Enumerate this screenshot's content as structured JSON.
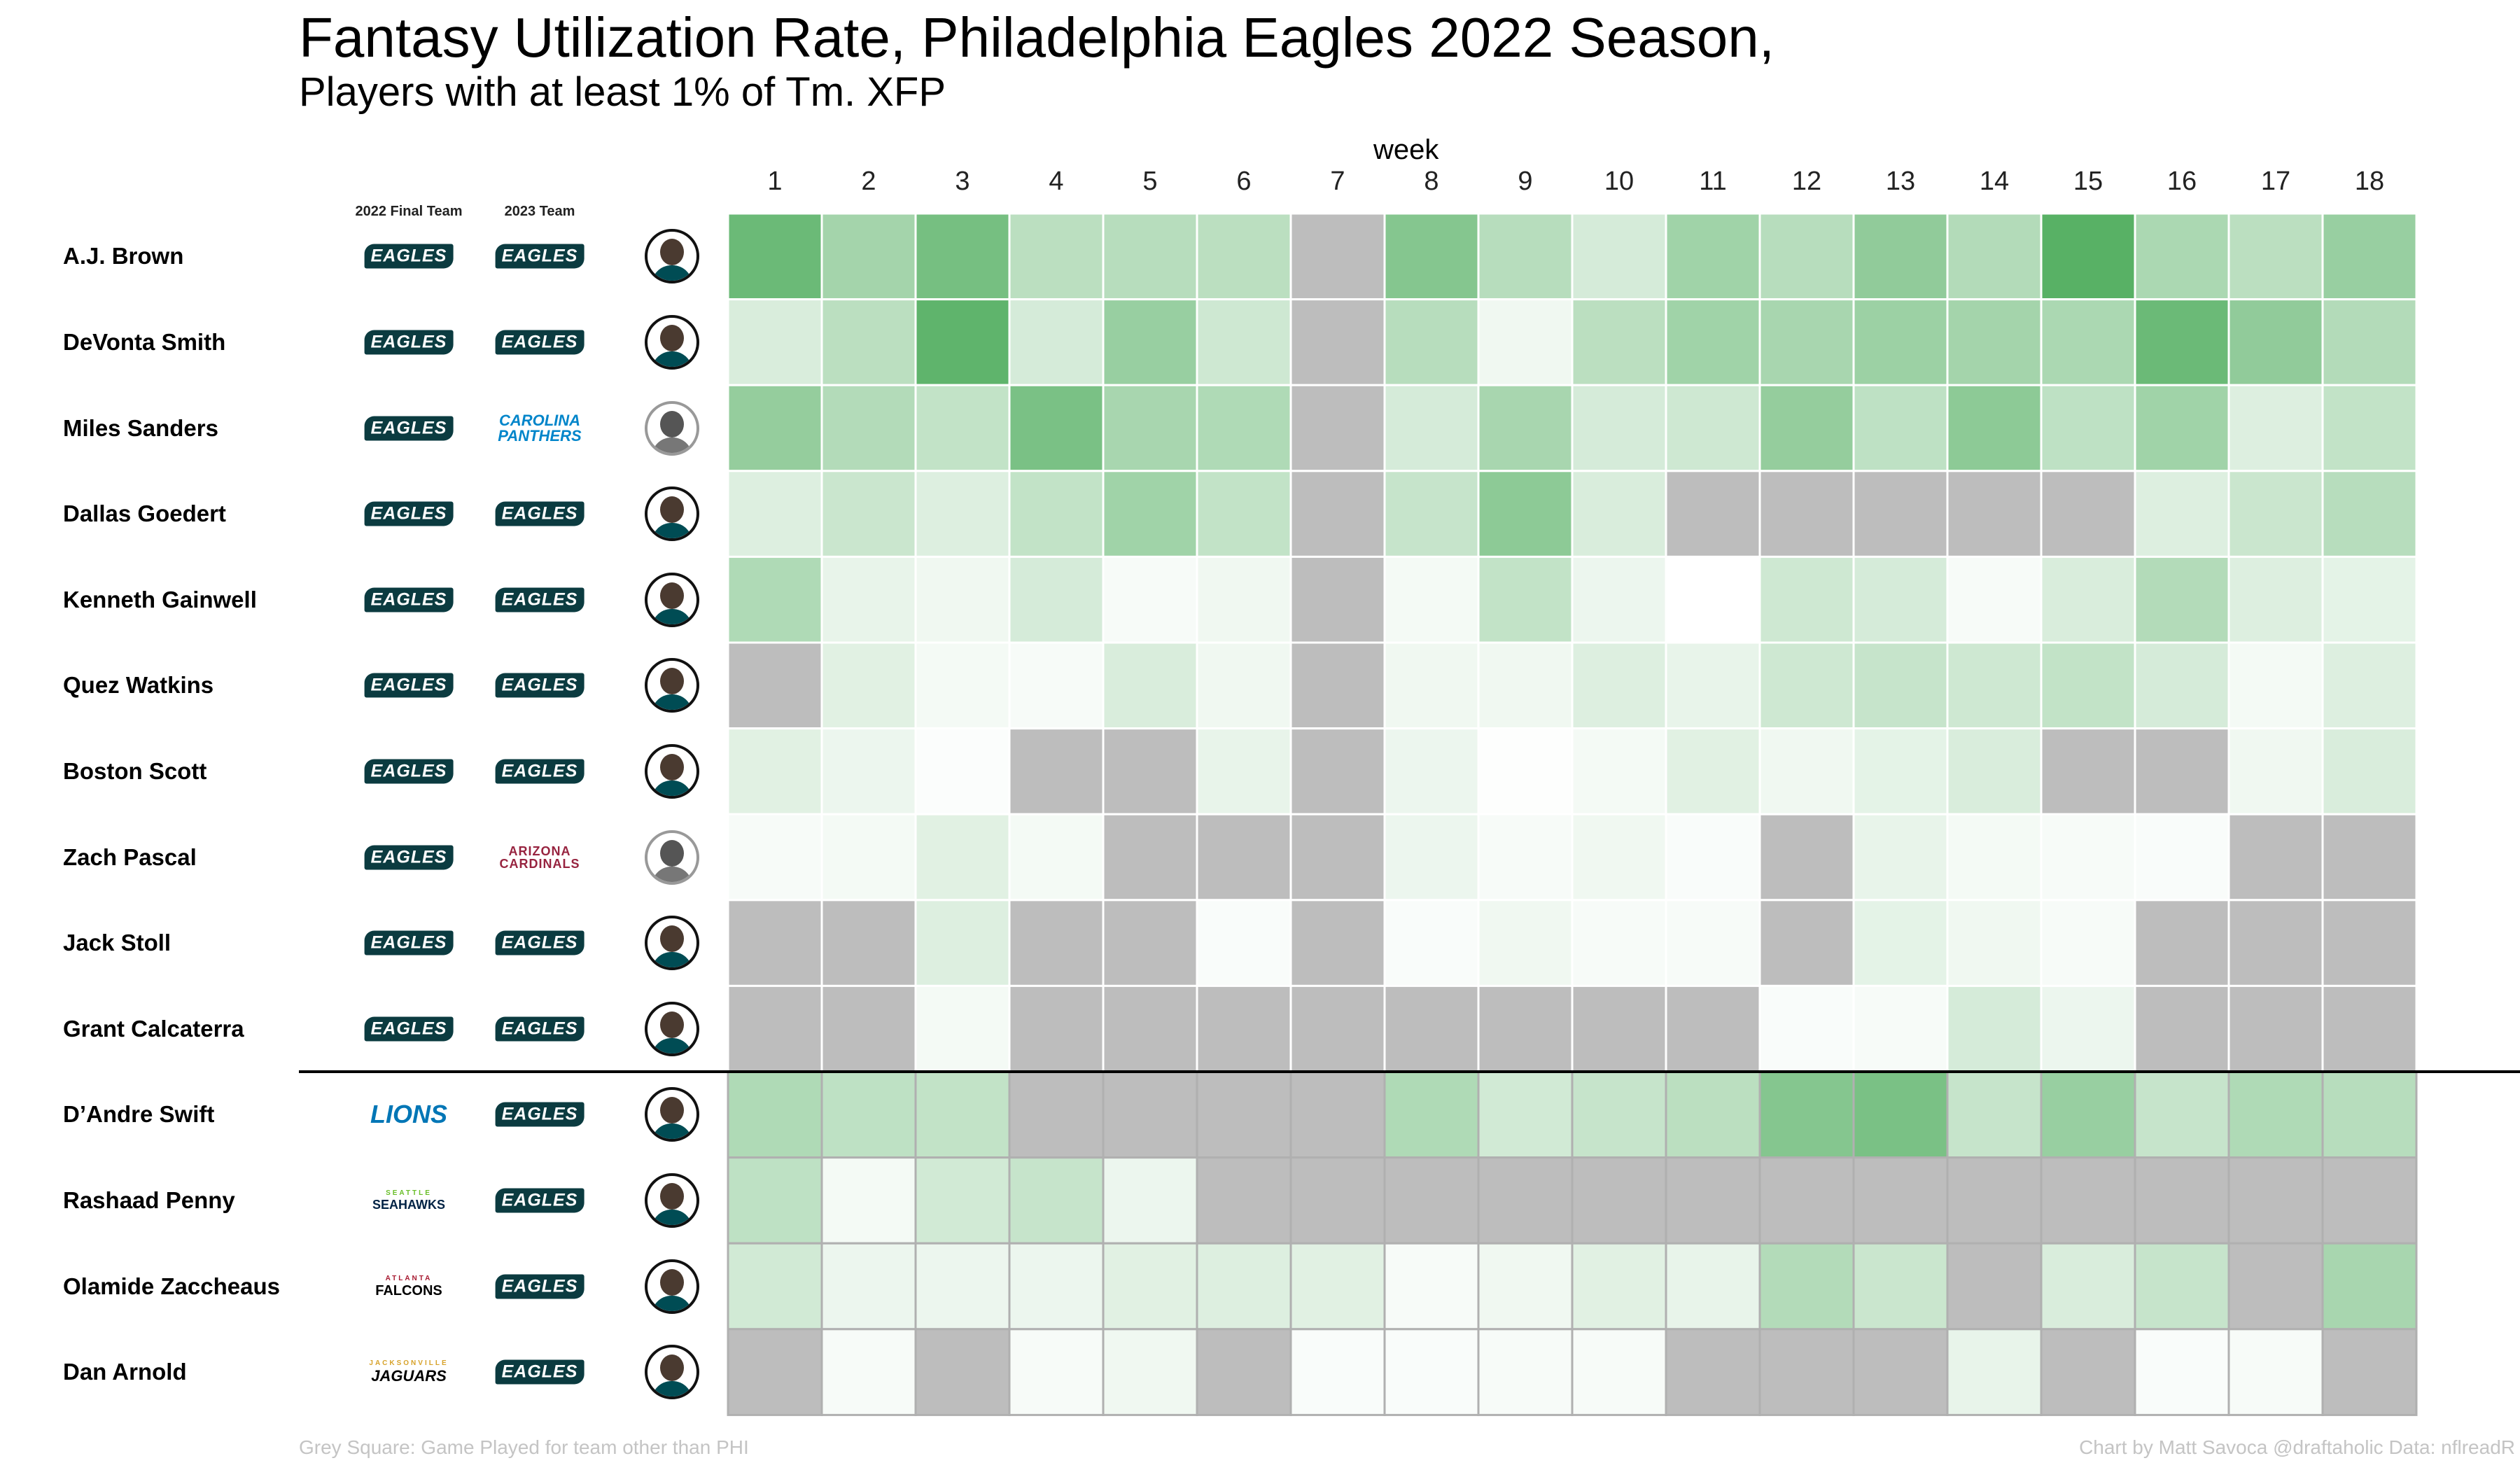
{
  "title": "Fantasy Utilization Rate, Philadelphia Eagles 2022 Season,",
  "subtitle": "Players with at least 1% of Tm. XFP",
  "column_headers": {
    "final_team": "2022 Final Team",
    "next_team": "2023 Team"
  },
  "footer": {
    "note": "Grey Square: Game Played for team other than PHI",
    "credit": "Chart by Matt Savoca    @draftaholic    Data: nflreadR"
  },
  "teams": {
    "eagles": {
      "text": "EAGLES",
      "color": "#004c54"
    },
    "panthers": {
      "text": "CAROLINA PANTHERS",
      "color": "#0085ca"
    },
    "cardinals": {
      "text": "ARIZONA CARDINALS",
      "color": "#97233f"
    },
    "lions": {
      "text": "LIONS",
      "color": "#0076b6"
    },
    "seahawks": {
      "sub": "SEATTLE",
      "text": "SEAHAWKS",
      "color": "#002244"
    },
    "falcons": {
      "sub": "ATLANTA",
      "text": "FALCONS",
      "color": "#000000"
    },
    "jaguars": {
      "sub": "JACKSONVILLE",
      "text": "JAGUARS",
      "color": "#000000"
    }
  },
  "colors": {
    "other_team": "#bdbdbd",
    "scale_low": "#ffffff",
    "scale_high": "#41a650",
    "divider": "#000000"
  },
  "chart_data": {
    "type": "heatmap",
    "xlabel": "week",
    "x": [
      1,
      2,
      3,
      4,
      5,
      6,
      7,
      8,
      9,
      10,
      11,
      12,
      13,
      14,
      15,
      16,
      17,
      18
    ],
    "note": "null = Game Played for team other than PHI (grey square)",
    "rows": [
      {
        "player": "A.J. Brown",
        "team_2022": "eagles",
        "team_2023": "eagles",
        "values": [
          0.78,
          0.48,
          0.72,
          0.36,
          0.38,
          0.36,
          null,
          0.64,
          0.38,
          0.22,
          0.5,
          0.38,
          0.58,
          0.4,
          0.88,
          0.44,
          0.36,
          0.54
        ]
      },
      {
        "player": "DeVonta Smith",
        "team_2022": "eagles",
        "team_2023": "eagles",
        "values": [
          0.2,
          0.36,
          0.84,
          0.22,
          0.54,
          0.26,
          null,
          0.38,
          0.08,
          0.36,
          0.5,
          0.46,
          0.52,
          0.48,
          0.44,
          0.78,
          0.58,
          0.4
        ]
      },
      {
        "player": "Miles Sanders",
        "team_2022": "eagles",
        "team_2023": "panthers",
        "values": [
          0.56,
          0.4,
          0.32,
          0.7,
          0.46,
          0.42,
          null,
          0.22,
          0.46,
          0.22,
          0.26,
          0.56,
          0.34,
          0.6,
          0.34,
          0.5,
          0.18,
          0.32
        ]
      },
      {
        "player": "Dallas Goedert",
        "team_2022": "eagles",
        "team_2023": "eagles",
        "values": [
          0.18,
          0.28,
          0.18,
          0.32,
          0.5,
          0.32,
          null,
          0.3,
          0.6,
          0.2,
          null,
          null,
          null,
          null,
          null,
          0.18,
          0.28,
          0.38
        ]
      },
      {
        "player": "Kenneth Gainwell",
        "team_2022": "eagles",
        "team_2023": "eagles",
        "values": [
          0.42,
          0.12,
          0.08,
          0.22,
          0.04,
          0.08,
          null,
          0.06,
          0.32,
          0.1,
          0.0,
          0.26,
          0.22,
          0.04,
          0.2,
          0.4,
          0.18,
          0.14
        ]
      },
      {
        "player": "Quez Watkins",
        "team_2022": "eagles",
        "team_2023": "eagles",
        "values": [
          null,
          0.16,
          0.06,
          0.04,
          0.2,
          0.08,
          null,
          0.08,
          0.08,
          0.18,
          0.12,
          0.26,
          0.3,
          0.26,
          0.32,
          0.22,
          0.06,
          0.18
        ]
      },
      {
        "player": "Boston Scott",
        "team_2022": "eagles",
        "team_2023": "eagles",
        "values": [
          0.16,
          0.1,
          0.02,
          null,
          null,
          0.12,
          null,
          0.1,
          0.01,
          0.06,
          0.16,
          0.08,
          0.14,
          0.2,
          null,
          null,
          0.08,
          0.2
        ]
      },
      {
        "player": "Zach Pascal",
        "team_2022": "eagles",
        "team_2023": "cardinals",
        "values": [
          0.04,
          0.06,
          0.16,
          0.06,
          null,
          null,
          null,
          0.1,
          0.04,
          0.08,
          0.03,
          null,
          0.12,
          0.06,
          0.04,
          0.03,
          null,
          null
        ]
      },
      {
        "player": "Jack Stoll",
        "team_2022": "eagles",
        "team_2023": "eagles",
        "values": [
          null,
          null,
          0.18,
          null,
          null,
          0.03,
          null,
          0.03,
          0.08,
          0.04,
          0.04,
          null,
          0.14,
          0.08,
          0.04,
          null,
          null,
          null
        ]
      },
      {
        "player": "Grant Calcaterra",
        "team_2022": "eagles",
        "team_2023": "eagles",
        "values": [
          null,
          null,
          0.06,
          null,
          null,
          null,
          null,
          null,
          null,
          null,
          null,
          0.03,
          0.04,
          0.22,
          0.1,
          null,
          null,
          null
        ]
      },
      {
        "player": "D’Andre Swift",
        "team_2022": "lions",
        "team_2023": "eagles",
        "values": [
          0.42,
          0.34,
          0.32,
          null,
          null,
          null,
          null,
          0.42,
          0.24,
          0.3,
          0.36,
          0.64,
          0.7,
          0.3,
          0.54,
          0.3,
          0.42,
          0.38
        ]
      },
      {
        "player": "Rashaad Penny",
        "team_2022": "seahawks",
        "team_2023": "eagles",
        "values": [
          0.34,
          0.06,
          0.24,
          0.3,
          0.1,
          null,
          null,
          null,
          null,
          null,
          null,
          null,
          null,
          null,
          null,
          null,
          null,
          null
        ]
      },
      {
        "player": "Olamide Zaccheaus",
        "team_2022": "falcons",
        "team_2023": "eagles",
        "values": [
          0.24,
          0.1,
          0.1,
          0.1,
          0.16,
          0.18,
          0.16,
          0.04,
          0.08,
          0.16,
          0.12,
          0.4,
          0.28,
          null,
          0.2,
          0.3,
          null,
          0.46
        ]
      },
      {
        "player": "Dan Arnold",
        "team_2022": "jaguars",
        "team_2023": "eagles",
        "values": [
          null,
          0.04,
          null,
          0.04,
          0.08,
          null,
          0.03,
          0.03,
          0.04,
          0.04,
          null,
          null,
          null,
          0.12,
          null,
          0.03,
          0.04,
          null
        ]
      }
    ],
    "divider_after_row": 10
  }
}
